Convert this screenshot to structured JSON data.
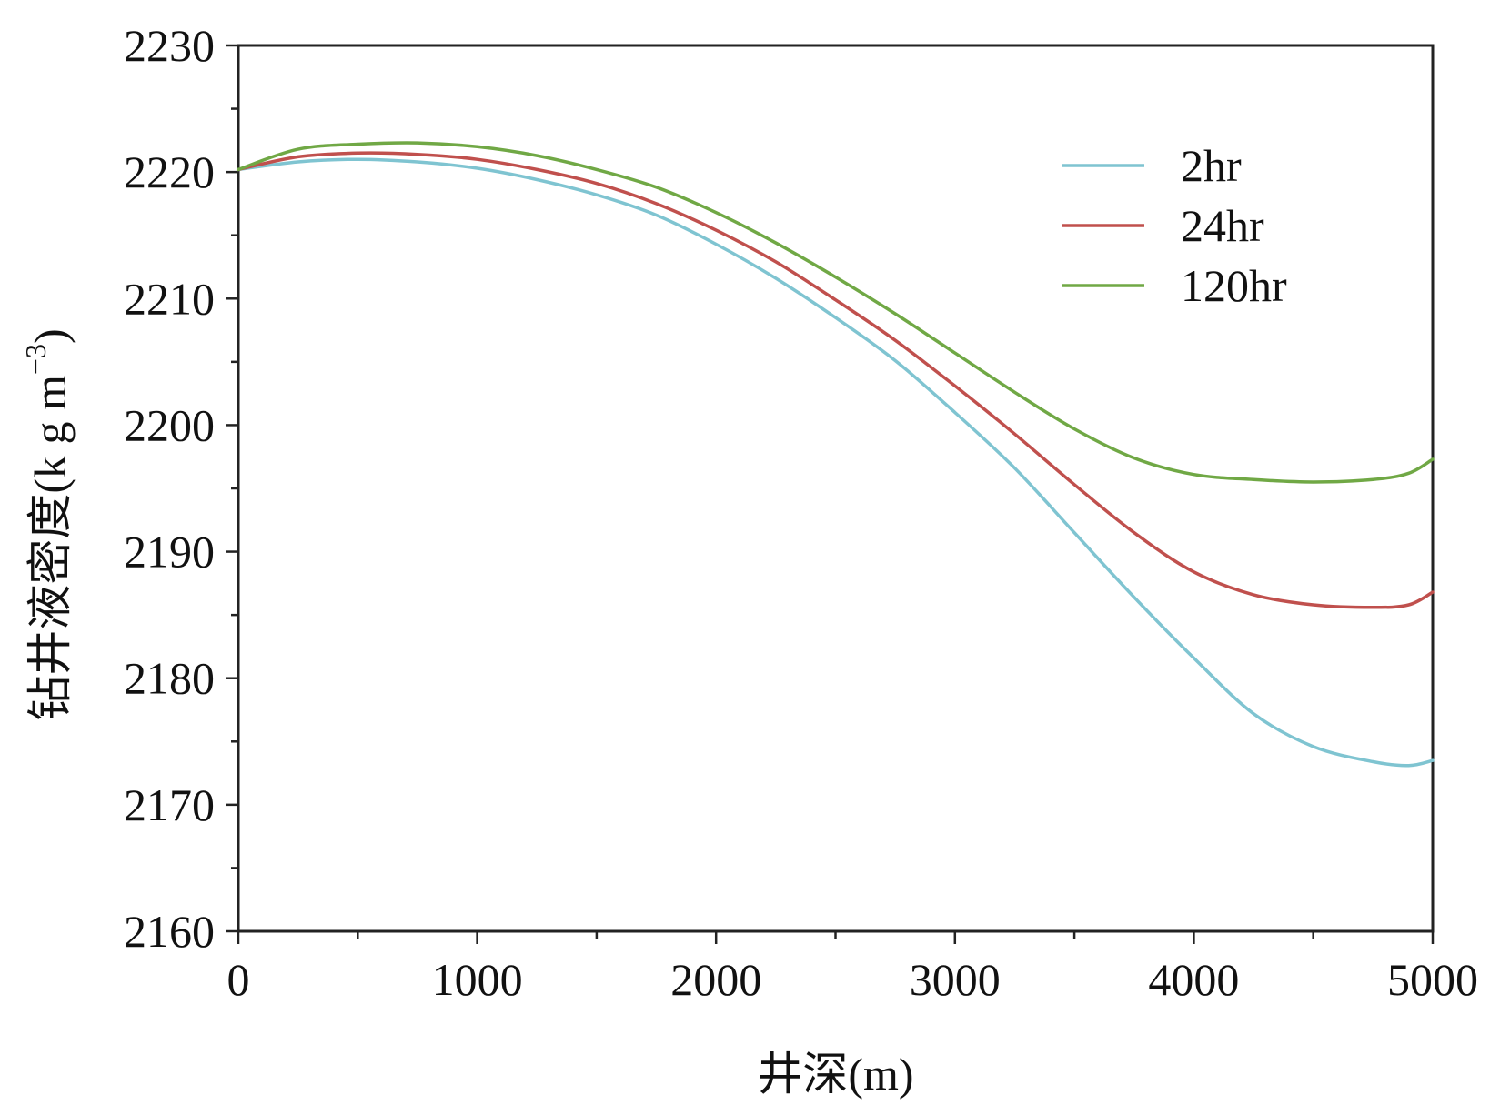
{
  "chart_data": {
    "type": "line",
    "title": "",
    "xlabel": "井深(m)",
    "ylabel_main": "钻井液密度",
    "ylabel_unit_open": "(",
    "ylabel_unit": "k g m",
    "ylabel_exp": "−3",
    "ylabel_unit_close": ")",
    "xlim": [
      0,
      5000
    ],
    "ylim": [
      2160,
      2230
    ],
    "x_ticks": [
      0,
      1000,
      2000,
      3000,
      4000,
      5000
    ],
    "x_tick_labels": [
      "0",
      "1000",
      "2000",
      "3000",
      "4000",
      "5000"
    ],
    "y_ticks": [
      2160,
      2170,
      2180,
      2190,
      2200,
      2210,
      2220,
      2230
    ],
    "y_tick_labels": [
      "2160",
      "2170",
      "2180",
      "2190",
      "2200",
      "2210",
      "2220",
      "2230"
    ],
    "grid": false,
    "legend_position": "top-right",
    "x": [
      0,
      250,
      500,
      750,
      1000,
      1250,
      1500,
      1750,
      2000,
      2250,
      2500,
      2750,
      3000,
      3250,
      3500,
      3750,
      4000,
      4250,
      4500,
      4750,
      4900,
      5000
    ],
    "series": [
      {
        "name": "2hr",
        "color": "#7fc4d1",
        "values": [
          2220.2,
          2220.8,
          2221.0,
          2220.8,
          2220.3,
          2219.4,
          2218.2,
          2216.6,
          2214.3,
          2211.6,
          2208.5,
          2205.1,
          2201.0,
          2196.6,
          2191.5,
          2186.4,
          2181.6,
          2177.2,
          2174.6,
          2173.4,
          2173.1,
          2173.5
        ]
      },
      {
        "name": "24hr",
        "color": "#c0504d",
        "values": [
          2220.2,
          2221.2,
          2221.5,
          2221.4,
          2221.0,
          2220.2,
          2219.1,
          2217.5,
          2215.4,
          2212.9,
          2209.9,
          2206.7,
          2203.1,
          2199.3,
          2195.3,
          2191.5,
          2188.4,
          2186.6,
          2185.8,
          2185.6,
          2185.8,
          2186.8
        ]
      },
      {
        "name": "120hr",
        "color": "#70a845",
        "values": [
          2220.2,
          2221.8,
          2222.2,
          2222.3,
          2222.0,
          2221.3,
          2220.2,
          2218.8,
          2216.8,
          2214.4,
          2211.7,
          2208.8,
          2205.7,
          2202.6,
          2199.7,
          2197.4,
          2196.1,
          2195.7,
          2195.5,
          2195.7,
          2196.2,
          2197.3
        ]
      }
    ]
  }
}
